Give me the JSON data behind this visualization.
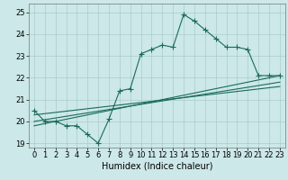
{
  "title": "",
  "xlabel": "Humidex (Indice chaleur)",
  "ylabel": "",
  "bg_color": "#cce8e8",
  "grid_color": "#aacccc",
  "line_color": "#1a6b5a",
  "xlim": [
    -0.5,
    23.5
  ],
  "ylim": [
    18.8,
    25.4
  ],
  "yticks": [
    19,
    20,
    21,
    22,
    23,
    24,
    25
  ],
  "xticks": [
    0,
    1,
    2,
    3,
    4,
    5,
    6,
    7,
    8,
    9,
    10,
    11,
    12,
    13,
    14,
    15,
    16,
    17,
    18,
    19,
    20,
    21,
    22,
    23
  ],
  "line1_x": [
    0,
    1,
    2,
    3,
    4,
    5,
    6,
    7,
    8,
    9,
    10,
    11,
    12,
    13,
    14,
    15,
    16,
    17,
    18,
    19,
    20,
    21,
    22,
    23
  ],
  "line1_y": [
    20.5,
    20.0,
    20.0,
    19.8,
    19.8,
    19.4,
    19.0,
    20.1,
    21.4,
    21.5,
    23.1,
    23.3,
    23.5,
    23.4,
    24.9,
    24.6,
    24.2,
    23.8,
    23.4,
    23.4,
    23.3,
    22.1,
    22.1,
    22.1
  ],
  "line2_x": [
    0,
    23
  ],
  "line2_y": [
    20.0,
    21.8
  ],
  "line3_x": [
    0,
    23
  ],
  "line3_y": [
    19.8,
    22.1
  ],
  "line4_x": [
    0,
    23
  ],
  "line4_y": [
    20.3,
    21.6
  ],
  "marker_size": 4,
  "linewidth": 0.8,
  "tick_fontsize": 6,
  "xlabel_fontsize": 7
}
